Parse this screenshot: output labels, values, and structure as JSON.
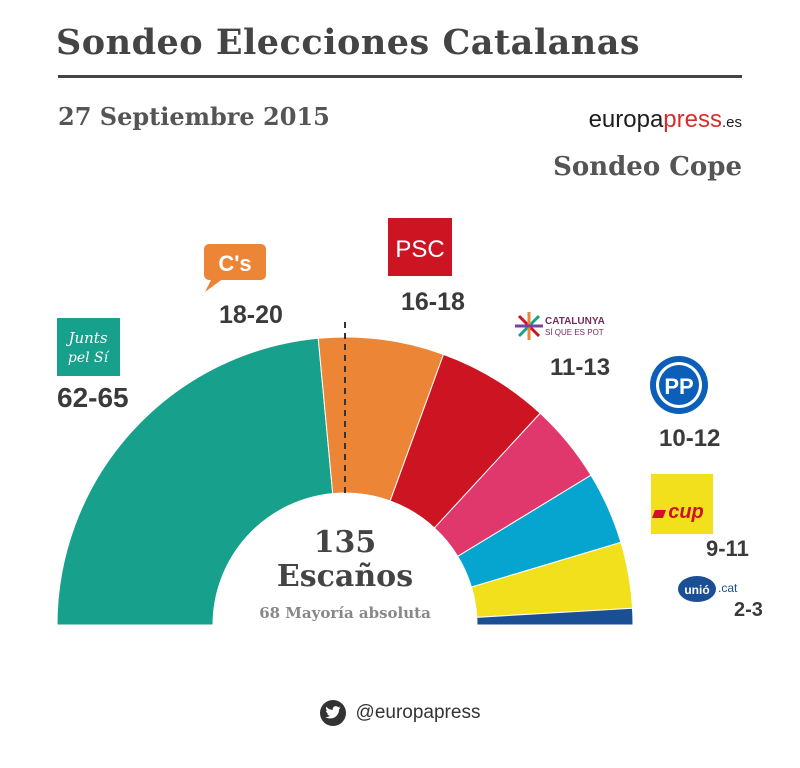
{
  "header": {
    "title": "Sondeo Elecciones Catalanas",
    "date": "27 Septiembre 2015",
    "brand": {
      "part1": "europa",
      "part2": "press",
      "part3": ".es"
    },
    "source": "Sondeo Cope"
  },
  "chart_data": {
    "type": "pie",
    "subtype": "half-donut parliament",
    "total_label": "135",
    "total_sub": "Escaños",
    "majority_label": "68 Mayoría absoluta",
    "majority_seats": 68,
    "total_seats": 135,
    "parties": [
      {
        "logo": "Junts pel Sí",
        "range": "62-65",
        "seats": 63.5,
        "color": "#17a08c"
      },
      {
        "logo": "C's",
        "range": "18-20",
        "seats": 19,
        "color": "#ec8535"
      },
      {
        "logo": "PSC",
        "range": "16-18",
        "seats": 17,
        "color": "#cc1423"
      },
      {
        "logo": "Catalunya Sí que es Pot",
        "range": "11-13",
        "seats": 12,
        "color": "#e0376c"
      },
      {
        "logo": "PP",
        "range": "10-12",
        "seats": 11,
        "color": "#06a5cf"
      },
      {
        "logo": "CUP",
        "range": "9-11",
        "seats": 10,
        "color": "#f2e01c"
      },
      {
        "logo": "unió.cat",
        "range": "2-3",
        "seats": 2.5,
        "color": "#1b4f95"
      }
    ]
  },
  "logos": {
    "junts_line1": "Junts",
    "junts_line2": "pel Sí",
    "cs": "C's",
    "psc": "PSC",
    "catalunya_line1": "CATALUNYA",
    "catalunya_line2": "SÍ QUE ES POT",
    "pp": "PP",
    "cup": "cup",
    "unio": "unió",
    "unio_suffix": ".cat"
  },
  "footer": {
    "handle": "@europapress",
    "icon": "twitter-icon"
  }
}
